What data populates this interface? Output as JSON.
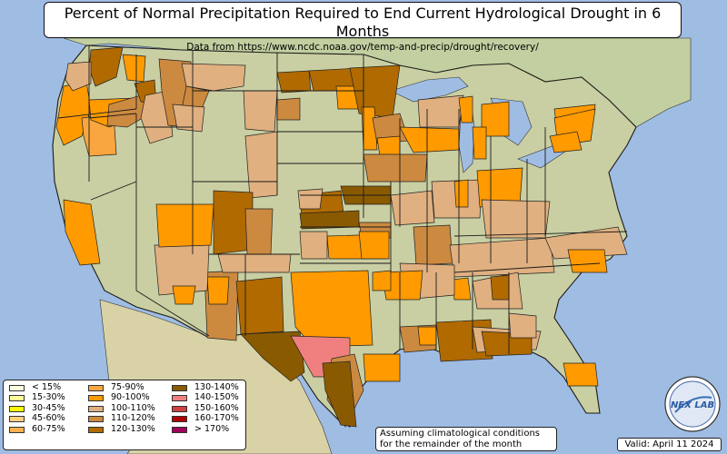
{
  "title": "Percent of Normal Precipitation Required to End Current Hydrological Drought in 6 Months",
  "subtitle": "Data from https://www.ncdc.noaa.gov/temp-and-precip/drought/recovery/",
  "note": {
    "line1": "Assuming climatological conditions",
    "line2": "for the remainder of the month"
  },
  "valid": "Valid: April 11 2024",
  "logo_text": "NEX LAB",
  "colors": {
    "ocean": "#9fbce3",
    "land": "#c9cfa2",
    "lake": "#9fbce3",
    "border": "#1a1a1a"
  },
  "legend": [
    {
      "label": "< 15%",
      "color": "#ffffe0"
    },
    {
      "label": "15-30%",
      "color": "#ffff99"
    },
    {
      "label": "30-45%",
      "color": "#ffff00"
    },
    {
      "label": "45-60%",
      "color": "#ffd080"
    },
    {
      "label": "60-75%",
      "color": "#ffb050"
    },
    {
      "label": "75-90%",
      "color": "#f9a640"
    },
    {
      "label": "90-100%",
      "color": "#ff9a00"
    },
    {
      "label": "100-110%",
      "color": "#e0b080"
    },
    {
      "label": "110-120%",
      "color": "#cc8a40"
    },
    {
      "label": "120-130%",
      "color": "#b06a00"
    },
    {
      "label": "130-140%",
      "color": "#8a5a00"
    },
    {
      "label": "140-150%",
      "color": "#f08080"
    },
    {
      "label": "150-160%",
      "color": "#d04040"
    },
    {
      "label": "160-170%",
      "color": "#b00000"
    },
    {
      "label": "> 170%",
      "color": "#a0005a"
    }
  ]
}
